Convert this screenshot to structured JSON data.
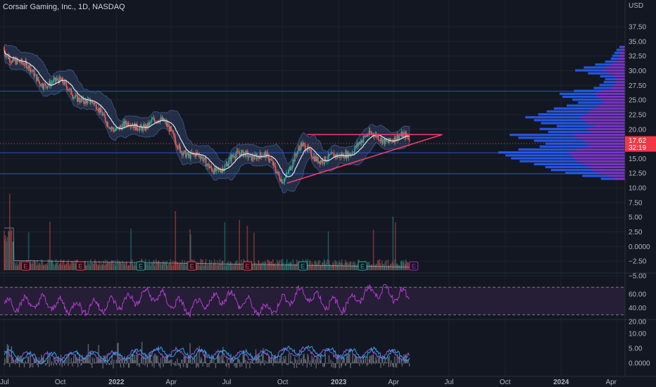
{
  "header": {
    "title": "Corsair Gaming, Inc., 1D, NASDAQ",
    "currency": "USD"
  },
  "colors": {
    "background": "#131722",
    "grid": "#1e222d",
    "candle_up": "#26a69a",
    "candle_down": "#ef5350",
    "sma": "#e0e3eb",
    "bands_fill": "#4a6aa5",
    "levels": "#2962ff",
    "triangle": "#f23b6b",
    "volume_profile": "#2962ff",
    "volume_profile_alt": "#9c27b0",
    "rsi_line": "#b03fcf",
    "rsi_band": "#2a1e3a",
    "macd_line": "#2ea4e8",
    "signal_line": "#8e5bd8",
    "histogram": "#787b86",
    "price_tag": "#f23645",
    "earnings_red": "#f23645",
    "earnings_green": "#26a69a",
    "earnings_upcoming": "#9c27b0"
  },
  "chart_data": [
    {
      "type": "line",
      "panel": "price",
      "series": [
        {
          "name": "",
          "x": [
            "2021-07-01",
            "2021-08-01",
            "2021-09-01",
            "2021-10-01",
            "2021-11-01",
            "2021-12-01",
            "2022-01-01",
            "2022-02-01",
            "2022-03-01",
            "2022-04-01",
            "2022-05-01",
            "2022-06-01",
            "2022-07-01",
            "2022-08-01",
            "2022-09-01",
            "2022-10-01",
            "2022-11-01",
            "2022-12-01",
            "2023-01-01",
            "2023-02-01",
            "2023-03-01",
            "2023-04-01",
            "2023-05-01"
          ],
          "values": [
            34.0,
            30.5,
            28.5,
            27.5,
            26.0,
            23.0,
            20.5,
            20.0,
            22.0,
            19.5,
            15.5,
            14.0,
            13.5,
            16.5,
            15.0,
            12.0,
            16.5,
            15.5,
            14.5,
            18.0,
            18.5,
            18.8,
            17.62
          ]
        }
      ],
      "levels": [
        26.5,
        16.0,
        12.4
      ],
      "triangle": {
        "top_start": [
          "2022-11-10",
          19.1
        ],
        "top_end": [
          "2023-06-20",
          19.1
        ],
        "bottom_start": [
          "2022-10-08",
          10.8
        ],
        "bottom_end": [
          "2023-06-20",
          19.1
        ]
      },
      "volume_profile": {
        "price_levels": [
          34,
          33.5,
          33,
          32.5,
          32,
          31.5,
          31,
          30.5,
          30,
          29.5,
          29,
          28.5,
          28,
          27.5,
          27,
          26.5,
          26,
          25.5,
          25,
          24.5,
          24,
          23.5,
          23,
          22.5,
          22,
          21.5,
          21,
          20.5,
          20,
          19.5,
          19,
          18.5,
          18,
          17.5,
          17,
          16.5,
          16,
          15.5,
          15,
          14.5,
          14,
          13.5,
          13,
          12.5,
          12,
          11.5
        ],
        "volumes": [
          8,
          12,
          15,
          18,
          20,
          28,
          42,
          58,
          70,
          52,
          35,
          28,
          30,
          36,
          44,
          72,
          92,
          88,
          74,
          66,
          82,
          100,
          110,
          122,
          140,
          128,
          118,
          96,
          120,
          108,
          162,
          150,
          128,
          112,
          120,
          150,
          178,
          168,
          160,
          148,
          128,
          112,
          104,
          84,
          60,
          34
        ]
      },
      "earnings_markers": [
        {
          "date": "2021-08-05",
          "label": "E",
          "result": "miss"
        },
        {
          "date": "2021-11-03",
          "label": "E",
          "result": "miss"
        },
        {
          "date": "2022-02-10",
          "label": "E",
          "result": "beat"
        },
        {
          "date": "2022-05-05",
          "label": "E",
          "result": "miss"
        },
        {
          "date": "2022-08-04",
          "label": "E",
          "result": "miss"
        },
        {
          "date": "2022-11-03",
          "label": "E",
          "result": "beat"
        },
        {
          "date": "2023-02-09",
          "label": "E",
          "result": "beat"
        },
        {
          "date": "2023-05-04",
          "label": "E",
          "result": "upcoming"
        }
      ],
      "last_price": "17.62",
      "countdown": "32:19",
      "x_tick_labels": [
        "Jul",
        "Oct",
        "2022",
        "Apr",
        "Jul",
        "Oct",
        "2023",
        "Apr",
        "Jul",
        "Oct",
        "2024",
        "Apr"
      ],
      "y_tick_labels": [
        "37.50",
        "35.00",
        "32.50",
        "30.00",
        "27.50",
        "25.00",
        "22.50",
        "20.00",
        "17.50",
        "15.00",
        "12.50",
        "10.00",
        "7.50",
        "5.00",
        "2.50",
        "0.0000",
        "−2.50",
        "−5.00"
      ]
    },
    {
      "type": "line",
      "panel": "rsi",
      "series": [
        {
          "name": "",
          "x": [
            "2021-07",
            "2021-09",
            "2021-11",
            "2022-01",
            "2022-03",
            "2022-05",
            "2022-07",
            "2022-09",
            "2022-11",
            "2023-01",
            "2023-03",
            "2023-05"
          ],
          "values": [
            45,
            48,
            40,
            46,
            60,
            38,
            58,
            35,
            62,
            42,
            66,
            55
          ]
        }
      ],
      "upper_band": 70,
      "lower_band": 30,
      "y_tick_labels": [
        "60.00",
        "40.00",
        "20.00"
      ]
    },
    {
      "type": "line",
      "panel": "macd",
      "series": [
        {
          "name": "",
          "x": [
            "2021-07",
            "2021-09",
            "2021-11",
            "2022-01",
            "2022-03",
            "2022-05",
            "2022-07",
            "2022-09",
            "2022-11",
            "2023-01",
            "2023-03",
            "2023-05"
          ],
          "values": [
            3.0,
            1.5,
            2.8,
            2.0,
            3.8,
            3.2,
            2.5,
            2.8,
            4.5,
            3.0,
            3.5,
            2.2
          ]
        },
        {
          "name": "",
          "x": [
            "2021-07",
            "2021-09",
            "2021-11",
            "2022-01",
            "2022-03",
            "2022-05",
            "2022-07",
            "2022-09",
            "2022-11",
            "2023-01",
            "2023-03",
            "2023-05"
          ],
          "values": [
            2.6,
            1.8,
            2.4,
            2.2,
            3.3,
            3.4,
            2.6,
            2.6,
            4.0,
            3.2,
            3.2,
            2.4
          ]
        }
      ],
      "y_tick_labels": [
        "10.00",
        "5.00",
        "0.0000"
      ]
    }
  ]
}
